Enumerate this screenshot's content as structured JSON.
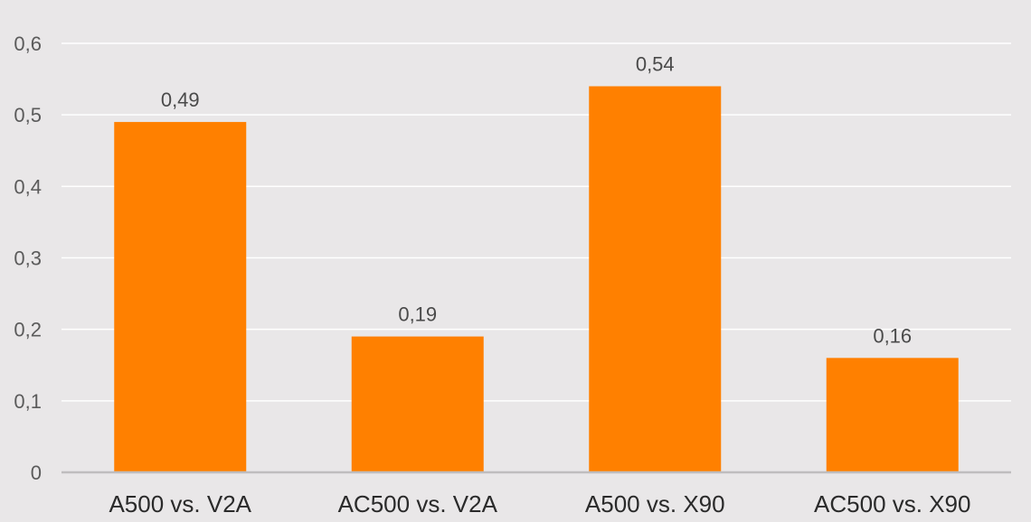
{
  "chart_data": {
    "type": "bar",
    "title": "",
    "xlabel": "",
    "ylabel": "",
    "categories": [
      "A500 vs. V2A",
      "AC500 vs. V2A",
      "A500 vs. X90",
      "AC500 vs. X90"
    ],
    "values": [
      0.49,
      0.19,
      0.54,
      0.16
    ],
    "value_labels": [
      "0,49",
      "0,19",
      "0,54",
      "0,16"
    ],
    "ylim": [
      0,
      0.6
    ],
    "y_ticks": [
      0,
      0.1,
      0.2,
      0.3,
      0.4,
      0.5,
      0.6
    ],
    "y_tick_labels": [
      "0",
      "0,1",
      "0,2",
      "0,3",
      "0,4",
      "0,5",
      "0,6"
    ],
    "grid": true,
    "legend": "none",
    "colors": {
      "bar": "#ff8000",
      "background": "#e9e7e8",
      "grid": "#ffffff",
      "axis": "#bfbdbe"
    }
  }
}
